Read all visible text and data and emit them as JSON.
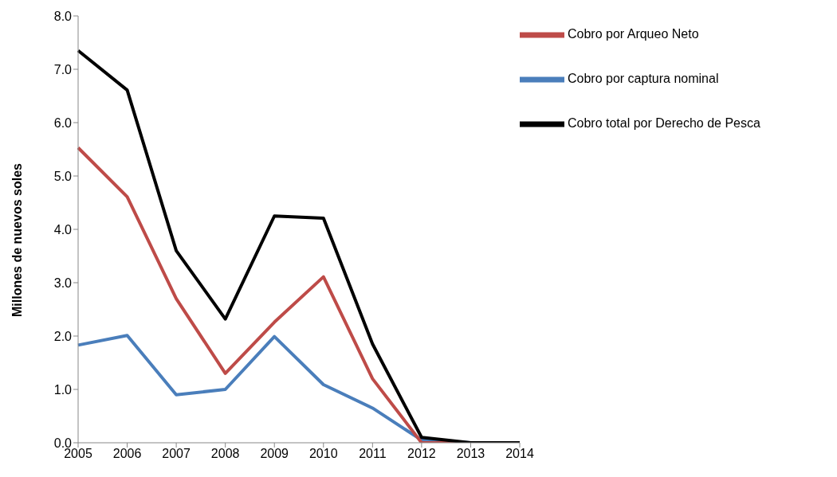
{
  "chart_data": {
    "type": "line",
    "ylabel": "Millones de nuevos soles",
    "categories": [
      "2005",
      "2006",
      "2007",
      "2008",
      "2009",
      "2010",
      "2011",
      "2012",
      "2013",
      "2014"
    ],
    "series": [
      {
        "name": "Cobro por captura nominal",
        "color": "#4a7ebb",
        "values": [
          1.83,
          2.01,
          0.9,
          1.0,
          1.99,
          1.09,
          0.65,
          0.05,
          0,
          0
        ]
      },
      {
        "name": "Cobro por Arqueo Neto",
        "color": "#be4b48",
        "values": [
          5.53,
          4.61,
          2.7,
          1.3,
          2.26,
          3.11,
          1.2,
          0,
          0,
          0
        ]
      },
      {
        "name": "Cobro total por Derecho de Pesca",
        "color": "#000000",
        "values": [
          7.35,
          6.61,
          3.6,
          2.32,
          4.25,
          4.21,
          1.85,
          0.1,
          0,
          0
        ]
      }
    ],
    "ylim": [
      0,
      8
    ],
    "yticks": [
      {
        "value": 0,
        "label": "0.0"
      },
      {
        "value": 1,
        "label": "1.0"
      },
      {
        "value": 2,
        "label": "2.0"
      },
      {
        "value": 3,
        "label": "3.0"
      },
      {
        "value": 4,
        "label": "4.0"
      },
      {
        "value": 5,
        "label": "5.0"
      },
      {
        "value": 6,
        "label": "6.0"
      },
      {
        "value": 7,
        "label": "7.0"
      },
      {
        "value": 8,
        "label": "8.0"
      }
    ],
    "grid": false,
    "legend": "top right",
    "marker": "none",
    "line_style": "solid"
  }
}
